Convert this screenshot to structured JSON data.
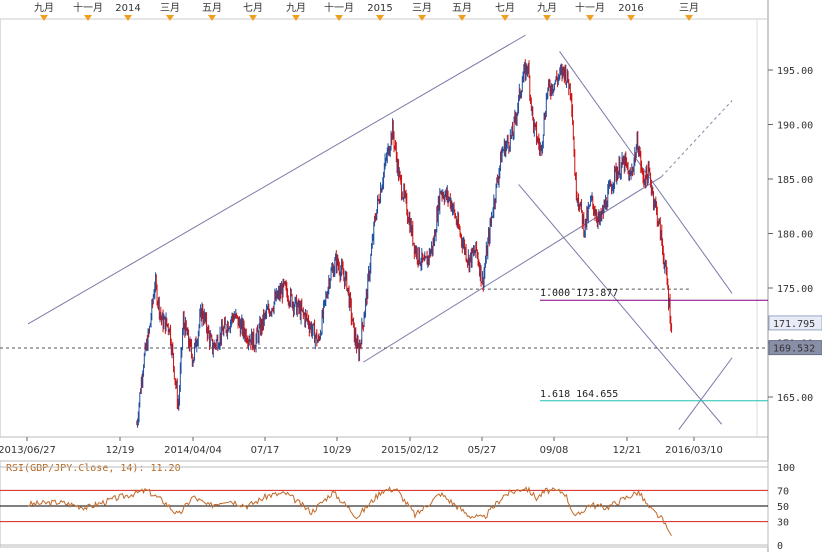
{
  "chart_data": {
    "type": "line",
    "series_kind": "candlestick-price",
    "y_range": [
      161.5,
      198.5
    ],
    "y_ticks": [
      "195.00",
      "190.00",
      "185.00",
      "180.00",
      "175.00",
      "170.00",
      "165.00"
    ],
    "x_date_labels": [
      "2013/06/27",
      "12/19",
      "2014/04/04",
      "07/17",
      "10/29",
      "2015/02/12",
      "05/27",
      "09/08",
      "12/21",
      "2016/03/10"
    ],
    "top_month_labels": [
      "九月",
      "十一月",
      "2014",
      "三月",
      "五月",
      "七月",
      "九月",
      "十一月",
      "2015",
      "三月",
      "五月",
      "七月",
      "九月",
      "十一月",
      "2016",
      "三月"
    ],
    "price_path": [
      [
        "2013-12-01",
        162.5
      ],
      [
        "2013-12-10",
        168.0
      ],
      [
        "2013-12-19",
        171.0
      ],
      [
        "2013-12-27",
        175.5
      ],
      [
        "2014-01-06",
        172.0
      ],
      [
        "2014-01-17",
        171.5
      ],
      [
        "2014-01-30",
        164.0
      ],
      [
        "2014-02-06",
        172.0
      ],
      [
        "2014-02-20",
        168.5
      ],
      [
        "2014-03-05",
        173.0
      ],
      [
        "2014-03-20",
        169.5
      ],
      [
        "2014-04-04",
        171.0
      ],
      [
        "2014-04-20",
        172.5
      ],
      [
        "2014-05-05",
        171.0
      ],
      [
        "2014-05-20",
        170.0
      ],
      [
        "2014-06-05",
        172.5
      ],
      [
        "2014-06-20",
        174.0
      ],
      [
        "2014-07-01",
        175.0
      ],
      [
        "2014-07-17",
        173.5
      ],
      [
        "2014-08-05",
        172.0
      ],
      [
        "2014-08-20",
        170.0
      ],
      [
        "2014-09-05",
        176.0
      ],
      [
        "2014-09-15",
        177.5
      ],
      [
        "2014-09-30",
        175.5
      ],
      [
        "2014-10-10",
        171.0
      ],
      [
        "2014-10-17",
        169.0
      ],
      [
        "2014-10-29",
        174.5
      ],
      [
        "2014-11-10",
        181.5
      ],
      [
        "2014-11-25",
        186.5
      ],
      [
        "2014-12-05",
        189.5
      ],
      [
        "2014-12-15",
        185.0
      ],
      [
        "2014-12-25",
        182.5
      ],
      [
        "2015-01-07",
        178.5
      ],
      [
        "2015-01-20",
        177.0
      ],
      [
        "2015-02-02",
        179.0
      ],
      [
        "2015-02-12",
        184.0
      ],
      [
        "2015-02-27",
        183.0
      ],
      [
        "2015-03-10",
        180.5
      ],
      [
        "2015-03-25",
        177.5
      ],
      [
        "2015-04-05",
        178.5
      ],
      [
        "2015-04-14",
        175.5
      ],
      [
        "2015-04-28",
        182.0
      ],
      [
        "2015-05-12",
        187.5
      ],
      [
        "2015-05-27",
        189.0
      ],
      [
        "2015-06-10",
        194.0
      ],
      [
        "2015-06-18",
        195.5
      ],
      [
        "2015-06-26",
        190.0
      ],
      [
        "2015-07-07",
        187.5
      ],
      [
        "2015-07-16",
        193.0
      ],
      [
        "2015-07-28",
        194.0
      ],
      [
        "2015-08-10",
        195.0
      ],
      [
        "2015-08-20",
        193.0
      ],
      [
        "2015-08-26",
        184.5
      ],
      [
        "2015-09-08",
        180.5
      ],
      [
        "2015-09-18",
        183.0
      ],
      [
        "2015-09-30",
        181.0
      ],
      [
        "2015-10-12",
        183.5
      ],
      [
        "2015-10-22",
        185.5
      ],
      [
        "2015-11-05",
        186.5
      ],
      [
        "2015-11-13",
        185.0
      ],
      [
        "2015-11-24",
        188.5
      ],
      [
        "2015-12-01",
        185.0
      ],
      [
        "2015-12-10",
        185.5
      ],
      [
        "2015-12-21",
        182.0
      ],
      [
        "2015-12-28",
        179.5
      ],
      [
        "2016-01-06",
        175.0
      ],
      [
        "2016-01-12",
        171.0
      ]
    ],
    "trendlines": [
      {
        "name": "upper-channel",
        "from": [
          "2013-06-27",
          171.7
        ],
        "to": [
          "2015-06-15",
          198.2
        ]
      },
      {
        "name": "lower-channel",
        "from": [
          "2014-10-24",
          168.2
        ],
        "to": [
          "2015-12-28",
          185.2
        ]
      },
      {
        "name": "lower-channel-extension",
        "from": [
          "2015-12-28",
          185.2
        ],
        "to": [
          "2016-04-08",
          192.2
        ],
        "dashed": true
      },
      {
        "name": "falling-upper",
        "from": [
          "2015-08-03",
          196.7
        ],
        "to": [
          "2016-04-08",
          174.5
        ]
      },
      {
        "name": "falling-lower",
        "from": [
          "2015-06-05",
          184.5
        ],
        "to": [
          "2016-03-24",
          162.5
        ]
      },
      {
        "name": "rising-bottom",
        "from": [
          "2016-01-22",
          162.0
        ],
        "to": [
          "2016-04-08",
          168.6
        ]
      }
    ],
    "horizontal_levels": [
      {
        "name": "dashed-support",
        "value": 174.9,
        "from": "2014-12-30",
        "to": "2016-02-08",
        "dashed": true
      },
      {
        "name": "dashed-current",
        "value": 169.5,
        "dashed": true
      }
    ],
    "fib_levels": [
      {
        "label": "1.000",
        "value_label": "173.877",
        "value": 173.877,
        "color": "#800080"
      },
      {
        "label": "1.618",
        "value_label": "164.655",
        "value": 164.655,
        "color": "#20c0b0"
      }
    ],
    "price_tags": [
      {
        "text": "171.795",
        "value": 171.795,
        "style": "light"
      },
      {
        "text": "169.532",
        "value": 169.532,
        "style": "dark"
      }
    ],
    "rsi": {
      "title": "RSI(GBP/JPY.Close, 14): 11.20",
      "levels": [
        "100",
        "70",
        "50",
        "30",
        "0"
      ],
      "path": [
        [
          "2013-06-27",
          52
        ],
        [
          "2013-08-10",
          55
        ],
        [
          "2013-09-20",
          48
        ],
        [
          "2013-11-01",
          60
        ],
        [
          "2013-12-15",
          70
        ],
        [
          "2014-01-10",
          55
        ],
        [
          "2014-01-30",
          38
        ],
        [
          "2014-02-20",
          62
        ],
        [
          "2014-03-15",
          50
        ],
        [
          "2014-04-10",
          58
        ],
        [
          "2014-05-10",
          50
        ],
        [
          "2014-06-10",
          64
        ],
        [
          "2014-07-05",
          66
        ],
        [
          "2014-08-10",
          42
        ],
        [
          "2014-09-10",
          68
        ],
        [
          "2014-10-15",
          36
        ],
        [
          "2014-11-20",
          70
        ],
        [
          "2014-12-10",
          72
        ],
        [
          "2015-01-07",
          38
        ],
        [
          "2015-02-12",
          66
        ],
        [
          "2015-03-25",
          38
        ],
        [
          "2015-04-15",
          34
        ],
        [
          "2015-05-15",
          64
        ],
        [
          "2015-06-15",
          74
        ],
        [
          "2015-07-01",
          60
        ],
        [
          "2015-07-15",
          70
        ],
        [
          "2015-08-10",
          68
        ],
        [
          "2015-08-26",
          35
        ],
        [
          "2015-09-15",
          52
        ],
        [
          "2015-10-10",
          48
        ],
        [
          "2015-11-10",
          62
        ],
        [
          "2015-11-25",
          68
        ],
        [
          "2015-12-10",
          48
        ],
        [
          "2015-12-28",
          34
        ],
        [
          "2016-01-12",
          11.2
        ]
      ]
    },
    "colors": {
      "up": "#1f4e9c",
      "down": "#cc1010",
      "trendline": "#7a7aa8",
      "dashed": "#555555",
      "rsi_line": "#c06a2a",
      "rsi_70_30": "#d22020",
      "top_marker": "#f0a020",
      "tag_light_bg": "#e8ecf6",
      "tag_dark_bg": "#8a8fa8"
    }
  }
}
